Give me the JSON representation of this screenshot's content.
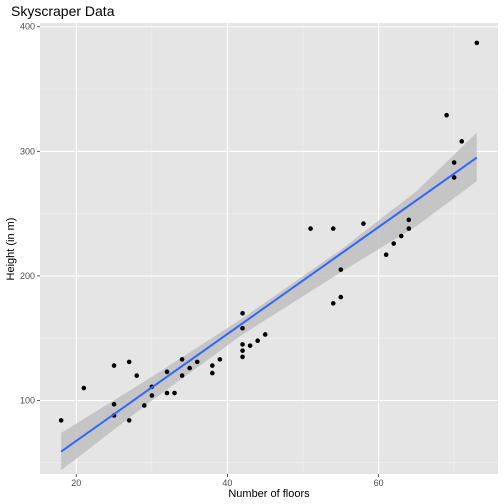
{
  "chart_data": {
    "type": "scatter",
    "title": "Skyscraper Data",
    "xlabel": "Number of floors",
    "ylabel": "Height (in m)",
    "xlim": [
      15.2,
      75.8
    ],
    "ylim": [
      41,
      403
    ],
    "x_ticks": [
      20,
      40,
      60
    ],
    "y_ticks": [
      100,
      200,
      300,
      400
    ],
    "grid": true,
    "colors": {
      "panel": "#e5e5e5",
      "grid_major": "#ffffff",
      "points": "#000000",
      "fit_line": "#3366ff",
      "confidence_band": "#bfbfbf"
    },
    "points": [
      {
        "x": 18,
        "y": 84
      },
      {
        "x": 21,
        "y": 110
      },
      {
        "x": 25,
        "y": 128
      },
      {
        "x": 25,
        "y": 97
      },
      {
        "x": 25,
        "y": 88
      },
      {
        "x": 27,
        "y": 131
      },
      {
        "x": 27,
        "y": 84
      },
      {
        "x": 28,
        "y": 120
      },
      {
        "x": 29,
        "y": 96
      },
      {
        "x": 30,
        "y": 111
      },
      {
        "x": 30,
        "y": 104
      },
      {
        "x": 32,
        "y": 123
      },
      {
        "x": 32,
        "y": 106
      },
      {
        "x": 33,
        "y": 106
      },
      {
        "x": 34,
        "y": 133
      },
      {
        "x": 34,
        "y": 120
      },
      {
        "x": 35,
        "y": 126
      },
      {
        "x": 36,
        "y": 131
      },
      {
        "x": 38,
        "y": 128
      },
      {
        "x": 38,
        "y": 122
      },
      {
        "x": 39,
        "y": 133
      },
      {
        "x": 42,
        "y": 170
      },
      {
        "x": 42,
        "y": 158
      },
      {
        "x": 42,
        "y": 145
      },
      {
        "x": 42,
        "y": 140
      },
      {
        "x": 42,
        "y": 135
      },
      {
        "x": 43,
        "y": 144
      },
      {
        "x": 44,
        "y": 148
      },
      {
        "x": 45,
        "y": 153
      },
      {
        "x": 51,
        "y": 238
      },
      {
        "x": 54,
        "y": 238
      },
      {
        "x": 54,
        "y": 178
      },
      {
        "x": 55,
        "y": 205
      },
      {
        "x": 55,
        "y": 183
      },
      {
        "x": 58,
        "y": 242
      },
      {
        "x": 61,
        "y": 217
      },
      {
        "x": 62,
        "y": 226
      },
      {
        "x": 63,
        "y": 232
      },
      {
        "x": 64,
        "y": 245
      },
      {
        "x": 64,
        "y": 238
      },
      {
        "x": 69,
        "y": 329
      },
      {
        "x": 70,
        "y": 291
      },
      {
        "x": 70,
        "y": 279
      },
      {
        "x": 71,
        "y": 308
      },
      {
        "x": 73,
        "y": 387
      }
    ],
    "fit_line": {
      "method": "linear",
      "x": [
        18,
        73
      ],
      "y": [
        59,
        295
      ]
    },
    "confidence_band": {
      "x": [
        18,
        30,
        42,
        55,
        65,
        73
      ],
      "lower": [
        44,
        100,
        153,
        203,
        240,
        276
      ],
      "upper": [
        74,
        119,
        166,
        221,
        268,
        315
      ]
    }
  }
}
